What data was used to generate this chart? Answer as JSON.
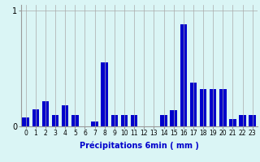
{
  "xlabel": "Précipitations 6min ( mm )",
  "background_color": "#daf5f5",
  "bar_color": "#0000cc",
  "grid_color": "#aaaaaa",
  "categories": [
    0,
    1,
    2,
    3,
    4,
    5,
    6,
    7,
    8,
    9,
    10,
    11,
    12,
    13,
    14,
    15,
    16,
    17,
    18,
    19,
    20,
    21,
    22,
    23
  ],
  "values": [
    0.08,
    0.15,
    0.22,
    0.1,
    0.18,
    0.1,
    0.0,
    0.04,
    0.55,
    0.1,
    0.1,
    0.1,
    0.0,
    0.0,
    0.1,
    0.14,
    0.88,
    0.38,
    0.32,
    0.32,
    0.32,
    0.06,
    0.1,
    0.1
  ],
  "ylim": [
    0,
    1.05
  ],
  "yticks": [
    0,
    1
  ],
  "xlim": [
    -0.5,
    23.5
  ],
  "xlabel_fontsize": 7,
  "xlabel_color": "#0000cc",
  "ytick_fontsize": 7,
  "xtick_fontsize": 5.5,
  "bar_width": 0.7
}
